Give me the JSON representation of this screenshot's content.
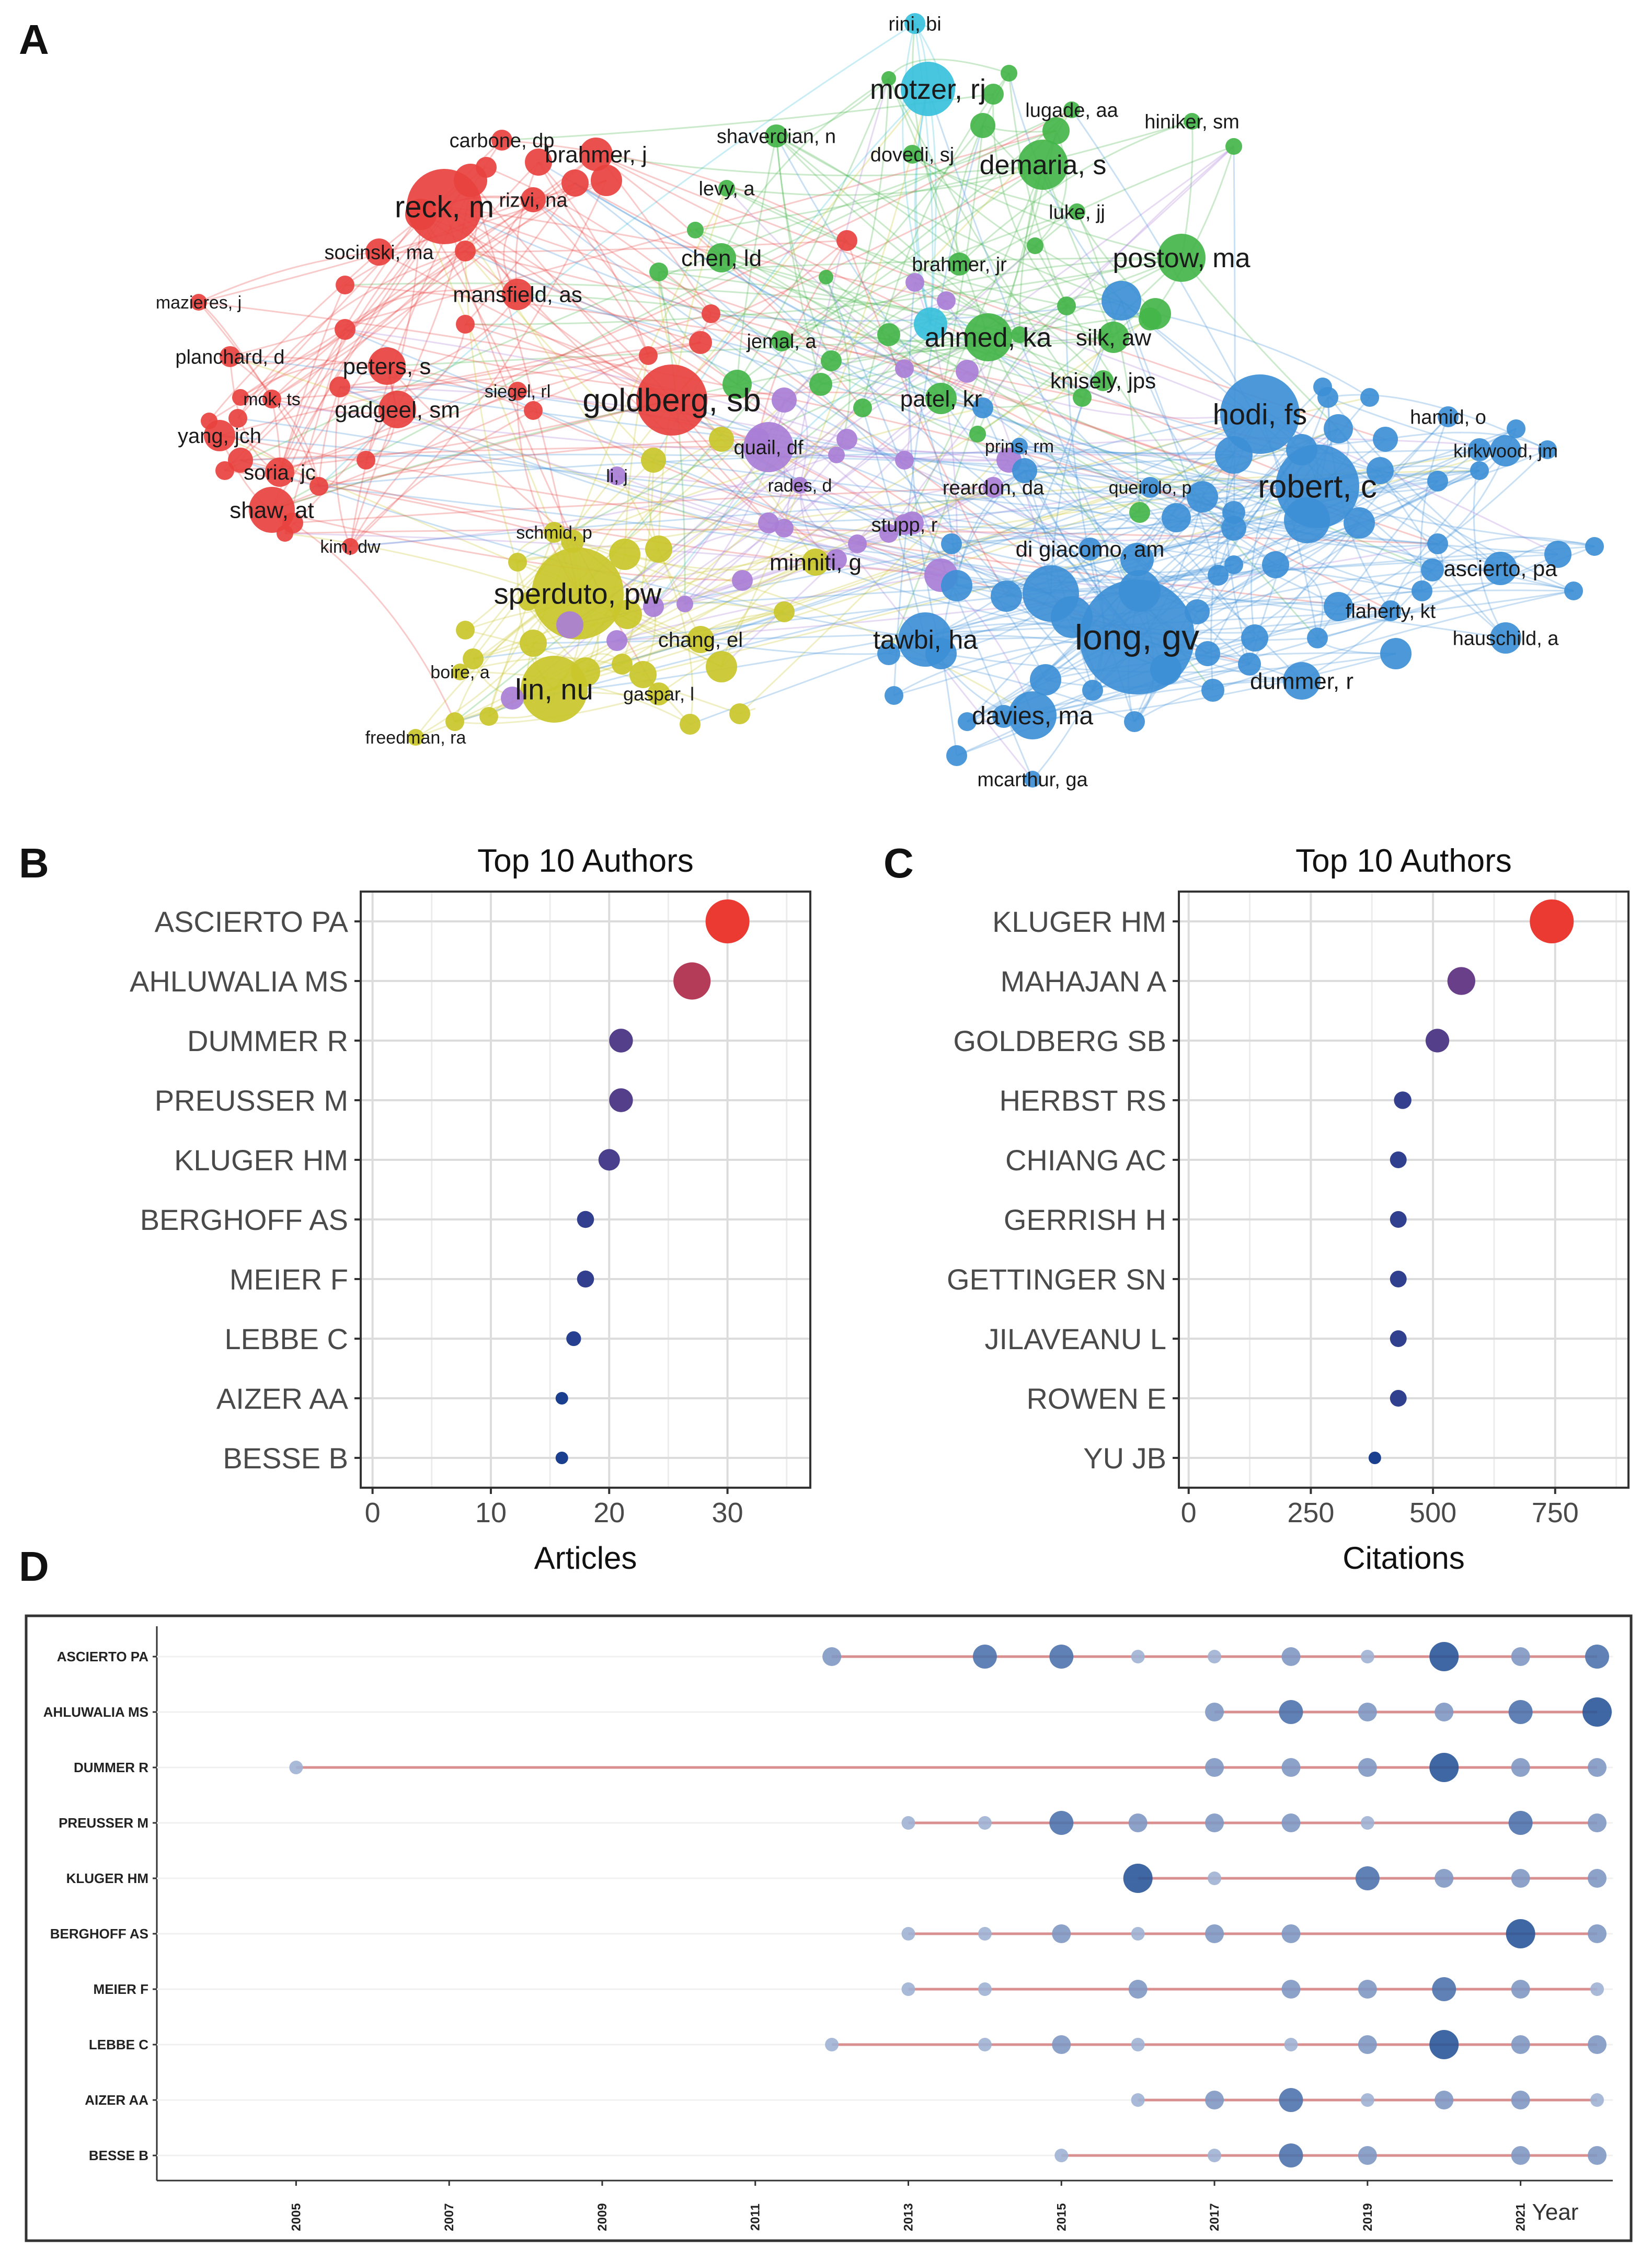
{
  "panels": {
    "a": "A",
    "b": "B",
    "c": "C",
    "d": "D"
  },
  "chart_data": [
    {
      "id": "network",
      "type": "network",
      "title": "",
      "clusters": {
        "red": "#e8423f",
        "green": "#44b549",
        "blue": "#3d8fd6",
        "yellow": "#c9c72a",
        "purple": "#a97ed6",
        "cyan": "#38c0dc"
      },
      "labels": [
        {
          "text": "rini, bi",
          "cluster": "cyan"
        },
        {
          "text": "motzer, rj",
          "cluster": "cyan"
        },
        {
          "text": "lugade, aa",
          "cluster": "green"
        },
        {
          "text": "hiniker, sm",
          "cluster": "green"
        },
        {
          "text": "shaverdian, n",
          "cluster": "green"
        },
        {
          "text": "dovedi, sj",
          "cluster": "green"
        },
        {
          "text": "demaria, s",
          "cluster": "green"
        },
        {
          "text": "levy, a",
          "cluster": "green"
        },
        {
          "text": "luke, jj",
          "cluster": "green"
        },
        {
          "text": "chen, ld",
          "cluster": "green"
        },
        {
          "text": "brahmer, jr",
          "cluster": "green"
        },
        {
          "text": "postow, ma",
          "cluster": "green"
        },
        {
          "text": "ahmed, ka",
          "cluster": "green"
        },
        {
          "text": "silk, aw",
          "cluster": "green"
        },
        {
          "text": "knisely, jps",
          "cluster": "green"
        },
        {
          "text": "patel, kr",
          "cluster": "green"
        },
        {
          "text": "jemal, a",
          "cluster": "green"
        },
        {
          "text": "carbone, dp",
          "cluster": "red"
        },
        {
          "text": "brahmer, j",
          "cluster": "red"
        },
        {
          "text": "reck, m",
          "cluster": "red"
        },
        {
          "text": "rizvi, na",
          "cluster": "red"
        },
        {
          "text": "socinski, ma",
          "cluster": "red"
        },
        {
          "text": "mansfield, as",
          "cluster": "red"
        },
        {
          "text": "mazieres, j",
          "cluster": "red"
        },
        {
          "text": "planchard, d",
          "cluster": "red"
        },
        {
          "text": "peters, s",
          "cluster": "red"
        },
        {
          "text": "mok, ts",
          "cluster": "red"
        },
        {
          "text": "gadgeel, sm",
          "cluster": "red"
        },
        {
          "text": "siegel, rl",
          "cluster": "red"
        },
        {
          "text": "goldberg, sb",
          "cluster": "red"
        },
        {
          "text": "yang, jch",
          "cluster": "red"
        },
        {
          "text": "soria, jc",
          "cluster": "red"
        },
        {
          "text": "shaw, at",
          "cluster": "red"
        },
        {
          "text": "kim, dw",
          "cluster": "red"
        },
        {
          "text": "quail, df",
          "cluster": "purple"
        },
        {
          "text": "li, j",
          "cluster": "purple"
        },
        {
          "text": "rades, d",
          "cluster": "purple"
        },
        {
          "text": "prins, rm",
          "cluster": "blue"
        },
        {
          "text": "reardon, da",
          "cluster": "purple"
        },
        {
          "text": "queirolo, p",
          "cluster": "blue"
        },
        {
          "text": "stupp, r",
          "cluster": "purple"
        },
        {
          "text": "schmid, p",
          "cluster": "yellow"
        },
        {
          "text": "sperduto, pw",
          "cluster": "yellow"
        },
        {
          "text": "minniti, g",
          "cluster": "yellow"
        },
        {
          "text": "di giacomo, am",
          "cluster": "blue"
        },
        {
          "text": "hodi, fs",
          "cluster": "blue"
        },
        {
          "text": "hamid, o",
          "cluster": "blue"
        },
        {
          "text": "kirkwood, jm",
          "cluster": "blue"
        },
        {
          "text": "robert, c",
          "cluster": "blue"
        },
        {
          "text": "ascierto, pa",
          "cluster": "blue"
        },
        {
          "text": "flaherty, kt",
          "cluster": "blue"
        },
        {
          "text": "hauschild, a",
          "cluster": "blue"
        },
        {
          "text": "tawbi, ha",
          "cluster": "blue"
        },
        {
          "text": "long, gv",
          "cluster": "blue"
        },
        {
          "text": "chang, el",
          "cluster": "yellow"
        },
        {
          "text": "boire, a",
          "cluster": "yellow"
        },
        {
          "text": "lin, nu",
          "cluster": "yellow"
        },
        {
          "text": "gaspar, l",
          "cluster": "yellow"
        },
        {
          "text": "dummer, r",
          "cluster": "blue"
        },
        {
          "text": "davies, ma",
          "cluster": "blue"
        },
        {
          "text": "freedman, ra",
          "cluster": "yellow"
        },
        {
          "text": "mcarthur, ga",
          "cluster": "blue"
        }
      ]
    },
    {
      "id": "articles",
      "type": "scatter",
      "title": "Top 10 Authors",
      "xlabel": "Articles",
      "xlim": [
        -1,
        37
      ],
      "xticks": [
        0,
        10,
        20,
        30
      ],
      "categories": [
        "ASCIERTO PA",
        "AHLUWALIA MS",
        "DUMMER R",
        "PREUSSER M",
        "KLUGER HM",
        "BERGHOFF AS",
        "MEIER F",
        "LEBBE C",
        "AIZER AA",
        "BESSE B"
      ],
      "values": [
        30,
        27,
        21,
        21,
        20,
        18,
        18,
        17,
        16,
        16
      ]
    },
    {
      "id": "citations",
      "type": "scatter",
      "title": "Top 10 Authors",
      "xlabel": "Citations",
      "xlim": [
        -20,
        900
      ],
      "xticks": [
        0,
        250,
        500,
        750
      ],
      "categories": [
        "KLUGER HM",
        "MAHAJAN A",
        "GOLDBERG SB",
        "HERBST RS",
        "CHIANG AC",
        "GERRISH H",
        "GETTINGER SN",
        "JILAVEANU L",
        "ROWEN E",
        "YU JB"
      ],
      "values": [
        743,
        558,
        509,
        438,
        429,
        429,
        429,
        429,
        429,
        381
      ]
    },
    {
      "id": "timeline",
      "type": "timeline",
      "title": "",
      "xlabel": "Year",
      "xlim": [
        2004,
        2022
      ],
      "xticks": [
        2005,
        2007,
        2009,
        2011,
        2013,
        2015,
        2017,
        2019,
        2021
      ],
      "authors": [
        {
          "name": "ASCIERTO PA",
          "points": [
            [
              2012,
              2
            ],
            [
              2014,
              3
            ],
            [
              2015,
              3
            ],
            [
              2016,
              1
            ],
            [
              2017,
              1
            ],
            [
              2018,
              2
            ],
            [
              2019,
              1
            ],
            [
              2020,
              4
            ],
            [
              2021,
              2
            ],
            [
              2022,
              3
            ]
          ]
        },
        {
          "name": "AHLUWALIA MS",
          "points": [
            [
              2017,
              2
            ],
            [
              2018,
              3
            ],
            [
              2019,
              2
            ],
            [
              2020,
              2
            ],
            [
              2021,
              3
            ],
            [
              2022,
              4
            ]
          ]
        },
        {
          "name": "DUMMER R",
          "points": [
            [
              2005,
              1
            ],
            [
              2017,
              2
            ],
            [
              2018,
              2
            ],
            [
              2019,
              2
            ],
            [
              2020,
              4
            ],
            [
              2021,
              2
            ],
            [
              2022,
              2
            ]
          ]
        },
        {
          "name": "PREUSSER M",
          "points": [
            [
              2013,
              1
            ],
            [
              2014,
              1
            ],
            [
              2015,
              3
            ],
            [
              2016,
              2
            ],
            [
              2017,
              2
            ],
            [
              2018,
              2
            ],
            [
              2019,
              1
            ],
            [
              2021,
              3
            ],
            [
              2022,
              2
            ]
          ]
        },
        {
          "name": "KLUGER HM",
          "points": [
            [
              2016,
              4
            ],
            [
              2017,
              1
            ],
            [
              2019,
              3
            ],
            [
              2020,
              2
            ],
            [
              2021,
              2
            ],
            [
              2022,
              2
            ]
          ]
        },
        {
          "name": "BERGHOFF AS",
          "points": [
            [
              2013,
              1
            ],
            [
              2014,
              1
            ],
            [
              2015,
              2
            ],
            [
              2016,
              1
            ],
            [
              2017,
              2
            ],
            [
              2018,
              2
            ],
            [
              2021,
              4
            ],
            [
              2022,
              2
            ]
          ]
        },
        {
          "name": "MEIER F",
          "points": [
            [
              2013,
              1
            ],
            [
              2014,
              1
            ],
            [
              2016,
              2
            ],
            [
              2018,
              2
            ],
            [
              2019,
              2
            ],
            [
              2020,
              3
            ],
            [
              2021,
              2
            ],
            [
              2022,
              1
            ]
          ]
        },
        {
          "name": "LEBBE C",
          "points": [
            [
              2012,
              1
            ],
            [
              2014,
              1
            ],
            [
              2015,
              2
            ],
            [
              2016,
              1
            ],
            [
              2018,
              1
            ],
            [
              2019,
              2
            ],
            [
              2020,
              4
            ],
            [
              2021,
              2
            ],
            [
              2022,
              2
            ]
          ]
        },
        {
          "name": "AIZER AA",
          "points": [
            [
              2016,
              1
            ],
            [
              2017,
              2
            ],
            [
              2018,
              3
            ],
            [
              2019,
              1
            ],
            [
              2020,
              2
            ],
            [
              2021,
              2
            ],
            [
              2022,
              1
            ]
          ]
        },
        {
          "name": "BESSE B",
          "points": [
            [
              2015,
              1
            ],
            [
              2017,
              1
            ],
            [
              2018,
              3
            ],
            [
              2019,
              2
            ],
            [
              2021,
              2
            ],
            [
              2022,
              2
            ]
          ]
        }
      ]
    }
  ]
}
